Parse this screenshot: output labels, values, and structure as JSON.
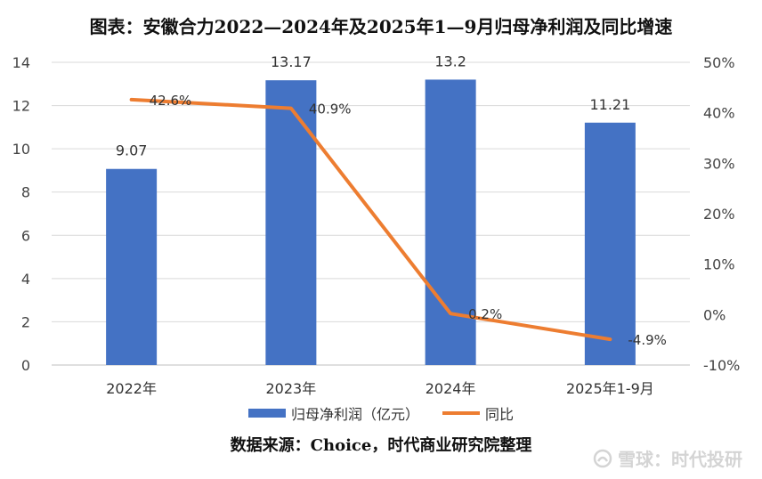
{
  "title": "图表：安徽合力2022—2024年及2025年1—9月归母净利润及同比增速",
  "source": "数据来源：Choice，时代商业研究院整理",
  "watermark": "雪球：时代投研",
  "chart_data": {
    "type": "bar",
    "categories": [
      "2022年",
      "2023年",
      "2024年",
      "2025年1-9月"
    ],
    "series": [
      {
        "name": "归母净利润（亿元）",
        "type": "bar",
        "axis": "left",
        "values": [
          9.07,
          13.17,
          13.2,
          11.21
        ],
        "labels": [
          "9.07",
          "13.17",
          "13.2",
          "11.21"
        ],
        "color": "#4472c4"
      },
      {
        "name": "同比",
        "type": "line",
        "axis": "right",
        "values": [
          42.6,
          40.9,
          0.2,
          -4.9
        ],
        "labels": [
          "42.6%",
          "40.9%",
          "0.2%",
          "-4.9%"
        ],
        "color": "#ed7d31"
      }
    ],
    "y_left": {
      "lim": [
        0,
        14
      ],
      "ticks": [
        "0",
        "2",
        "4",
        "6",
        "8",
        "10",
        "12",
        "14"
      ]
    },
    "y_right": {
      "lim": [
        -10,
        50
      ],
      "ticks": [
        "-10%",
        "0%",
        "10%",
        "20%",
        "30%",
        "40%",
        "50%"
      ]
    },
    "grid": true,
    "legend": "bottom"
  }
}
